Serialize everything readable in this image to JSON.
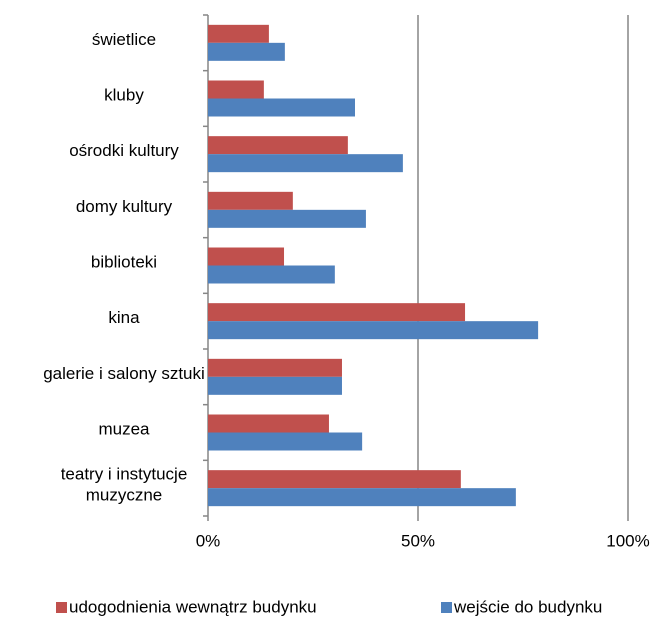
{
  "chart_data": {
    "type": "bar",
    "orientation": "horizontal",
    "categories": [
      "świetlice",
      "kluby",
      "ośrodki kultury",
      "domy kultury",
      "biblioteki",
      "kina",
      "galerie i salony sztuki",
      "muzea",
      "teatry i instytucje muzyczne"
    ],
    "series": [
      {
        "name": "udogodnienia wewnątrz budynku",
        "color": "#c0504d",
        "values": [
          14.5,
          13.3,
          33.3,
          20.2,
          18.1,
          61.2,
          31.9,
          28.8,
          60.2
        ]
      },
      {
        "name": "wejście do budynku",
        "color": "#4f81bd",
        "values": [
          18.3,
          35,
          46.4,
          37.6,
          30.2,
          78.6,
          31.9,
          36.7,
          73.3
        ]
      }
    ],
    "xlim": [
      0,
      100
    ],
    "xticks": [
      {
        "value": 0,
        "label": "0%"
      },
      {
        "value": 50,
        "label": "50%"
      },
      {
        "value": 100,
        "label": "100%"
      }
    ],
    "grid": true,
    "legend": "bottom"
  }
}
